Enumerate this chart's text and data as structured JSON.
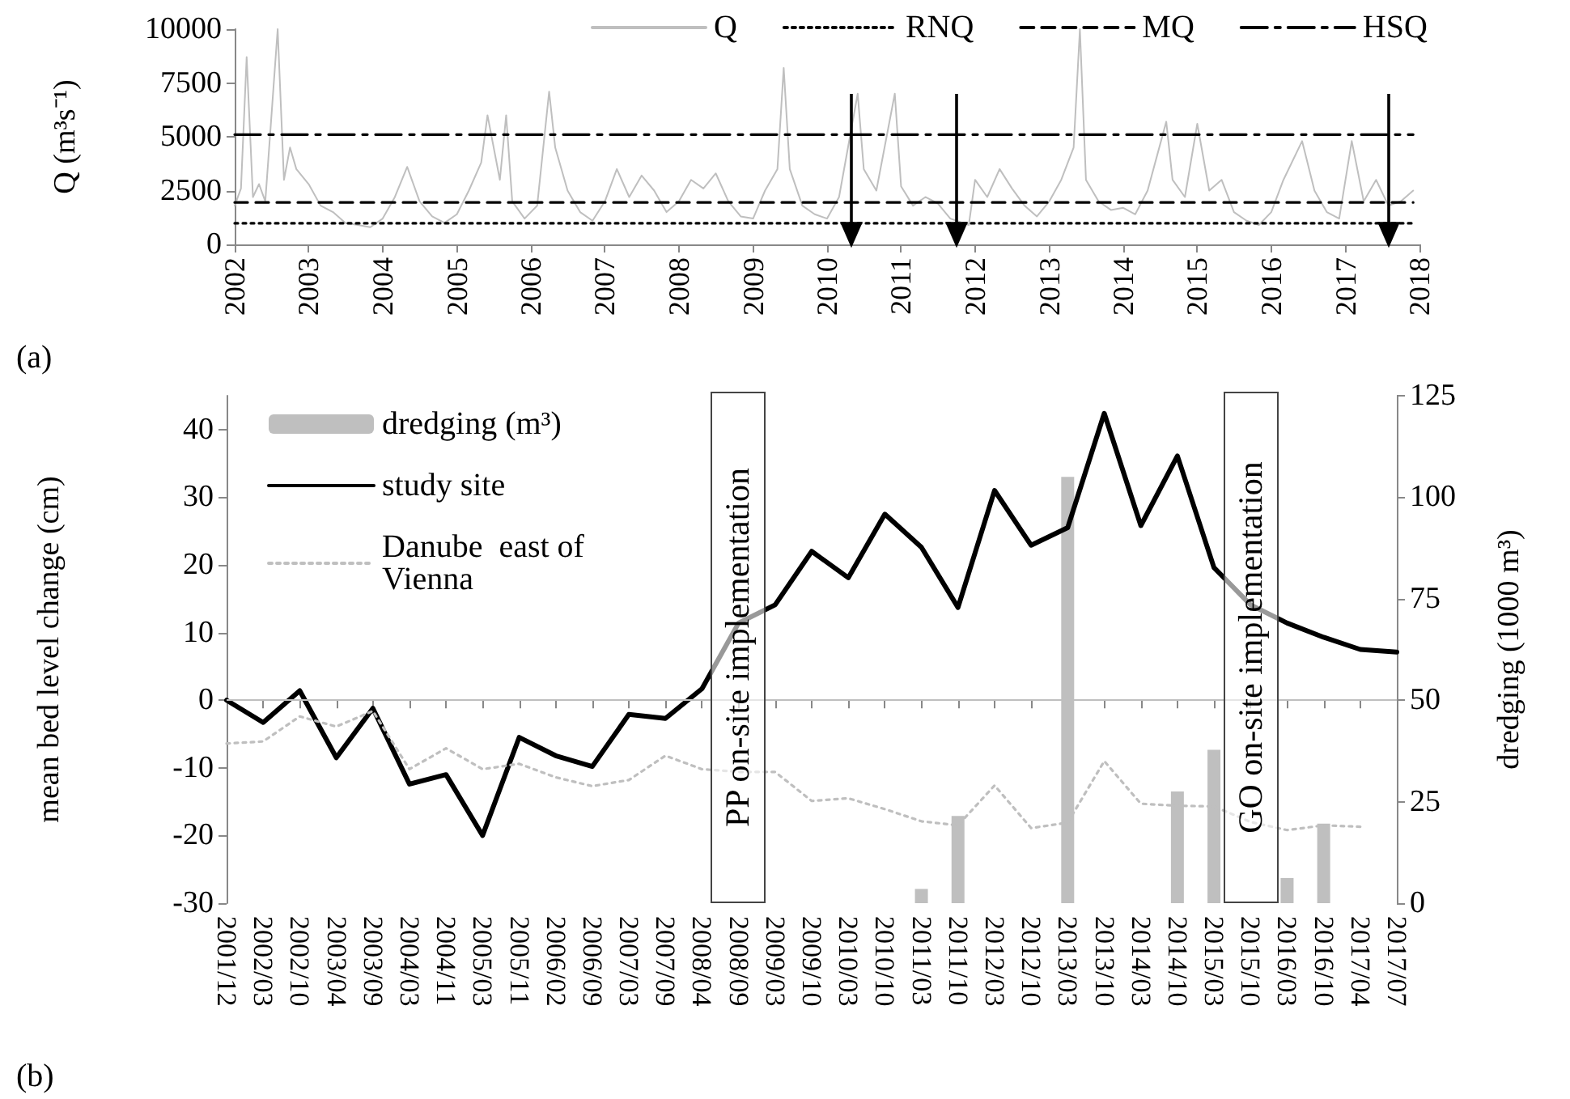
{
  "chart_data": [
    {
      "type": "line",
      "ylabel": "Q (m³s⁻¹)",
      "xlim": [
        "2002",
        "2018"
      ],
      "xticks": [
        "2002",
        "2003",
        "2004",
        "2005",
        "2006",
        "2007",
        "2008",
        "2009",
        "2010",
        "2011",
        "2012",
        "2013",
        "2014",
        "2015",
        "2016",
        "2017",
        "2018"
      ],
      "ylim": [
        0,
        10000
      ],
      "yticks": [
        0,
        2500,
        5000,
        7500,
        10000
      ],
      "legend": "top",
      "annotations": [
        "(a)"
      ],
      "ref_lines": [
        {
          "axis": "x",
          "value": "2010-05",
          "color": "#000000",
          "line_style": "solid"
        },
        {
          "axis": "x",
          "value": "2011-10",
          "color": "#000000",
          "line_style": "solid"
        },
        {
          "axis": "x",
          "value": "2017-08",
          "color": "#000000",
          "line_style": "solid"
        }
      ],
      "series": [
        {
          "name": "Q",
          "color": "#bfbfbf",
          "line_style": "solid",
          "x": [
            "2002-01",
            "2002-02",
            "2002-03",
            "2002-04",
            "2002-05",
            "2002-06",
            "2002-08",
            "2002-09",
            "2002-10",
            "2002-11",
            "2003-01",
            "2003-03",
            "2003-05",
            "2003-07",
            "2003-09",
            "2003-11",
            "2004-01",
            "2004-03",
            "2004-05",
            "2004-07",
            "2004-09",
            "2004-11",
            "2005-01",
            "2005-03",
            "2005-05",
            "2005-06",
            "2005-08",
            "2005-09",
            "2005-10",
            "2005-12",
            "2006-02",
            "2006-04",
            "2006-05",
            "2006-07",
            "2006-09",
            "2006-11",
            "2007-01",
            "2007-03",
            "2007-05",
            "2007-07",
            "2007-09",
            "2007-11",
            "2008-01",
            "2008-03",
            "2008-05",
            "2008-07",
            "2008-09",
            "2008-11",
            "2009-01",
            "2009-03",
            "2009-05",
            "2009-06",
            "2009-07",
            "2009-09",
            "2009-11",
            "2010-01",
            "2010-03",
            "2010-06",
            "2010-07",
            "2010-09",
            "2010-12",
            "2011-01",
            "2011-03",
            "2011-05",
            "2011-07",
            "2011-09",
            "2011-12",
            "2012-01",
            "2012-03",
            "2012-05",
            "2012-07",
            "2012-09",
            "2012-11",
            "2013-01",
            "2013-03",
            "2013-05",
            "2013-06",
            "2013-07",
            "2013-09",
            "2013-11",
            "2014-01",
            "2014-03",
            "2014-05",
            "2014-08",
            "2014-09",
            "2014-11",
            "2015-01",
            "2015-03",
            "2015-05",
            "2015-07",
            "2015-09",
            "2015-11",
            "2016-01",
            "2016-03",
            "2016-06",
            "2016-08",
            "2016-10",
            "2016-12",
            "2017-02",
            "2017-04",
            "2017-06",
            "2017-08",
            "2017-10",
            "2017-12"
          ],
          "values": [
            1800,
            2600,
            8700,
            2200,
            2800,
            2000,
            10000,
            3000,
            4500,
            3500,
            2800,
            1800,
            1500,
            1000,
            900,
            800,
            1200,
            2200,
            3600,
            2000,
            1300,
            1000,
            1400,
            2500,
            3800,
            6000,
            3000,
            6000,
            2000,
            1200,
            1800,
            7100,
            4500,
            2500,
            1500,
            1100,
            2000,
            3500,
            2200,
            3200,
            2500,
            1500,
            2000,
            3000,
            2600,
            3300,
            2000,
            1300,
            1200,
            2500,
            3500,
            8200,
            3500,
            1800,
            1400,
            1200,
            2200,
            7000,
            3500,
            2500,
            7000,
            2700,
            1800,
            2200,
            1900,
            1200,
            900,
            3000,
            2200,
            3500,
            2600,
            1800,
            1300,
            2000,
            3000,
            4500,
            10000,
            3000,
            2000,
            1600,
            1700,
            1400,
            2500,
            5700,
            3000,
            2200,
            5600,
            2500,
            3000,
            1500,
            1100,
            900,
            1500,
            3000,
            4800,
            2500,
            1500,
            1200,
            4800,
            2000,
            3000,
            1800,
            2000,
            2500
          ]
        },
        {
          "name": "RNQ",
          "color": "#000000",
          "line_style": "dotted",
          "x": [
            "2002-01",
            "2017-12"
          ],
          "values": [
            980,
            980
          ]
        },
        {
          "name": "MQ",
          "color": "#000000",
          "line_style": "dashed",
          "x": [
            "2002-01",
            "2017-12"
          ],
          "values": [
            1950,
            1950
          ]
        },
        {
          "name": "HSQ",
          "color": "#000000",
          "line_style": "dashdot",
          "x": [
            "2002-01",
            "2017-12"
          ],
          "values": [
            5100,
            5100
          ]
        }
      ]
    },
    {
      "type": "line",
      "ylabel": "mean bed level change (cm)",
      "y2label": "dredging (1000 m³)",
      "legend": "top left",
      "annotations": [
        "(b)",
        {
          "text": "PP on-site implementation",
          "x": "2008/09"
        },
        {
          "text": "GO on-site implementation",
          "x": "2015/10"
        }
      ],
      "categories": [
        "2001/12",
        "2002/03",
        "2002/10",
        "2003/04",
        "2003/09",
        "2004/03",
        "2004/11",
        "2005/03",
        "2005/11",
        "2006/02",
        "2006/09",
        "2007/03",
        "2007/09",
        "2008/04",
        "2008/09",
        "2009/03",
        "2009/10",
        "2010/03",
        "2010/10",
        "2011/03",
        "2011/10",
        "2012/03",
        "2012/10",
        "2013/03",
        "2013/10",
        "2014/03",
        "2014/10",
        "2015/03",
        "2015/10",
        "2016/03",
        "2016/10",
        "2017/04",
        "2017/07"
      ],
      "ylim": [
        -30,
        45
      ],
      "yticks": [
        -30,
        -20,
        -10,
        0,
        10,
        20,
        30,
        40
      ],
      "y2lim": [
        0,
        125
      ],
      "y2ticks": [
        0,
        25,
        50,
        75,
        100,
        125
      ],
      "ref_lines": [
        {
          "axis": "y",
          "value": 0,
          "color": "#bfbfbf",
          "line_style": "solid"
        }
      ],
      "series": [
        {
          "name": "dredging (m³)",
          "type": "bar",
          "axis": "y2",
          "color": "#bfbfbf",
          "values": [
            null,
            null,
            null,
            null,
            null,
            null,
            null,
            null,
            null,
            null,
            null,
            null,
            null,
            null,
            null,
            null,
            null,
            null,
            null,
            3.5,
            21.5,
            null,
            null,
            105,
            null,
            null,
            27.5,
            37.8,
            null,
            6.2,
            19.6,
            null,
            null
          ]
        },
        {
          "name": "study site",
          "color": "#000000",
          "line_style": "solid",
          "values": [
            0,
            -3.3,
            1.4,
            -8.5,
            -1.2,
            -12.4,
            -11,
            -20,
            -5.5,
            -8.2,
            -9.8,
            -2.1,
            -2.7,
            1.7,
            11.4,
            14.1,
            22,
            18.1,
            27.5,
            22.6,
            13.7,
            31,
            22.9,
            25.5,
            42.4,
            25.8,
            36.1,
            19.6,
            14.1,
            11.4,
            9.3,
            7.5,
            7.1
          ]
        },
        {
          "name": "Danube  east of Vienna",
          "color": "#bfbfbf",
          "line_style": "dotted",
          "values": [
            -6.4,
            -6.1,
            -2.4,
            -3.9,
            -1.6,
            -10.2,
            -7.1,
            -10.2,
            -9.4,
            -11.4,
            -12.7,
            -11.8,
            -8.2,
            -10.2,
            -10.6,
            -10.6,
            -14.9,
            -14.5,
            -16.1,
            -17.9,
            -18.5,
            -12.6,
            -18.9,
            -18.1,
            -9,
            -15.3,
            -15.6,
            -15.7,
            -18,
            -19.2,
            -18.5,
            -18.7,
            null
          ]
        }
      ]
    }
  ]
}
